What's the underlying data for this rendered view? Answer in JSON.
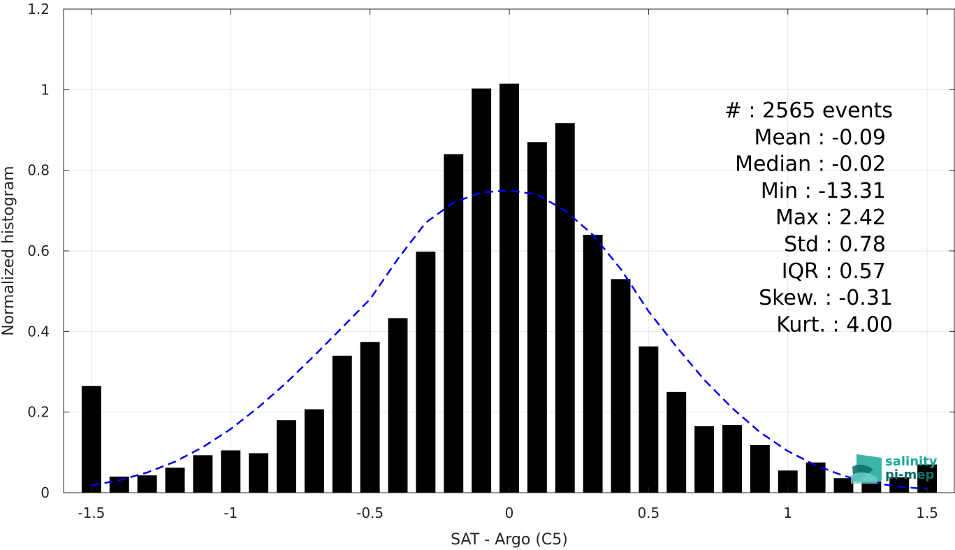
{
  "chart_data": {
    "type": "bar",
    "xlabel": "SAT - Argo (C5)",
    "ylabel": "Normalized histogram",
    "xlim": [
      -1.6,
      1.6
    ],
    "ylim": [
      0,
      1.2
    ],
    "xticks": [
      "-1.5",
      "-1",
      "-0.5",
      "0",
      "0.5",
      "1",
      "1.5"
    ],
    "yticks": [
      "0",
      "0.2",
      "0.4",
      "0.6",
      "0.8",
      "1",
      "1.2"
    ],
    "grid": true,
    "bars": {
      "x": [
        -1.5,
        -1.4,
        -1.3,
        -1.2,
        -1.1,
        -1.0,
        -0.9,
        -0.8,
        -0.7,
        -0.6,
        -0.5,
        -0.4,
        -0.3,
        -0.2,
        -0.1,
        0.0,
        0.1,
        0.2,
        0.3,
        0.4,
        0.5,
        0.6,
        0.7,
        0.8,
        0.9,
        1.0,
        1.1,
        1.2,
        1.3,
        1.4,
        1.5
      ],
      "values": [
        0.265,
        0.04,
        0.043,
        0.062,
        0.093,
        0.105,
        0.098,
        0.18,
        0.207,
        0.34,
        0.374,
        0.433,
        0.598,
        0.84,
        1.003,
        1.015,
        0.87,
        0.917,
        0.64,
        0.53,
        0.363,
        0.25,
        0.165,
        0.168,
        0.118,
        0.055,
        0.075,
        0.036,
        0.028,
        0.038,
        0.07
      ],
      "color": "#000000"
    },
    "fit": {
      "style": "dashed",
      "color": "#0000ee",
      "x": [
        -1.5,
        -1.4,
        -1.3,
        -1.2,
        -1.1,
        -1.0,
        -0.9,
        -0.8,
        -0.7,
        -0.6,
        -0.5,
        -0.4,
        -0.3,
        -0.2,
        -0.1,
        0.0,
        0.1,
        0.2,
        0.3,
        0.4,
        0.5,
        0.6,
        0.7,
        0.8,
        0.9,
        1.0,
        1.1,
        1.2,
        1.3,
        1.4,
        1.5
      ],
      "y": [
        0.018,
        0.031,
        0.05,
        0.077,
        0.113,
        0.158,
        0.212,
        0.273,
        0.34,
        0.41,
        0.48,
        0.58,
        0.67,
        0.72,
        0.745,
        0.75,
        0.74,
        0.7,
        0.64,
        0.555,
        0.45,
        0.362,
        0.28,
        0.21,
        0.15,
        0.103,
        0.068,
        0.042,
        0.025,
        0.015,
        0.009
      ]
    },
    "annotation": {
      "lines": [
        "#  : 2565 events",
        "Mean : -0.09",
        "Median : -0.02",
        "Min : -13.31",
        "Max : 2.42",
        "Std : 0.78",
        "IQR : 0.57",
        "Skew. : -0.31",
        "Kurt. : 4.00"
      ]
    }
  },
  "logo": {
    "line1": "salinity",
    "line2": "pi-mep",
    "color": "#1aa89a"
  }
}
